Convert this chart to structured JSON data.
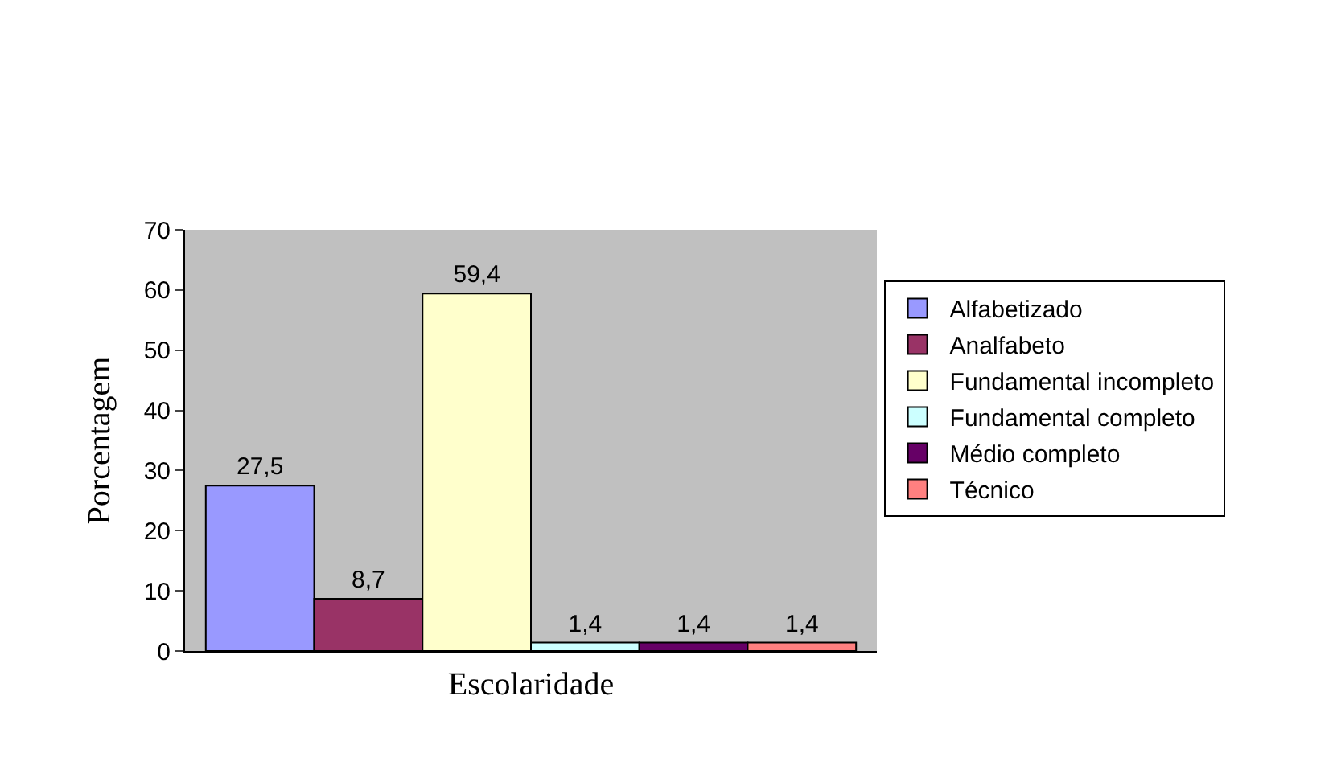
{
  "chart_data": {
    "type": "bar",
    "xlabel": "Escolaridade",
    "ylabel": "Porcentagem",
    "categories": [
      null
    ],
    "series": [
      {
        "name": "Alfabetizado",
        "color": "#9999ff",
        "values": [
          27.5
        ],
        "value_labels": [
          "27,5"
        ]
      },
      {
        "name": "Analfabeto",
        "color": "#993366",
        "values": [
          8.7
        ],
        "value_labels": [
          "8,7"
        ]
      },
      {
        "name": "Fundamental incompleto",
        "color": "#ffffcc",
        "values": [
          59.4
        ],
        "value_labels": [
          "59,4"
        ]
      },
      {
        "name": "Fundamental completo",
        "color": "#ccffff",
        "values": [
          1.4
        ],
        "value_labels": [
          "1,4"
        ]
      },
      {
        "name": "Médio completo",
        "color": "#660066",
        "values": [
          1.4
        ],
        "value_labels": [
          "1,4"
        ]
      },
      {
        "name": "Técnico",
        "color": "#ff8080",
        "values": [
          1.4
        ],
        "value_labels": [
          "1,4"
        ]
      }
    ],
    "ylim": [
      0,
      70
    ],
    "yticks": [
      0,
      10,
      20,
      30,
      40,
      50,
      60,
      70
    ],
    "grid": false,
    "legend": "right"
  }
}
